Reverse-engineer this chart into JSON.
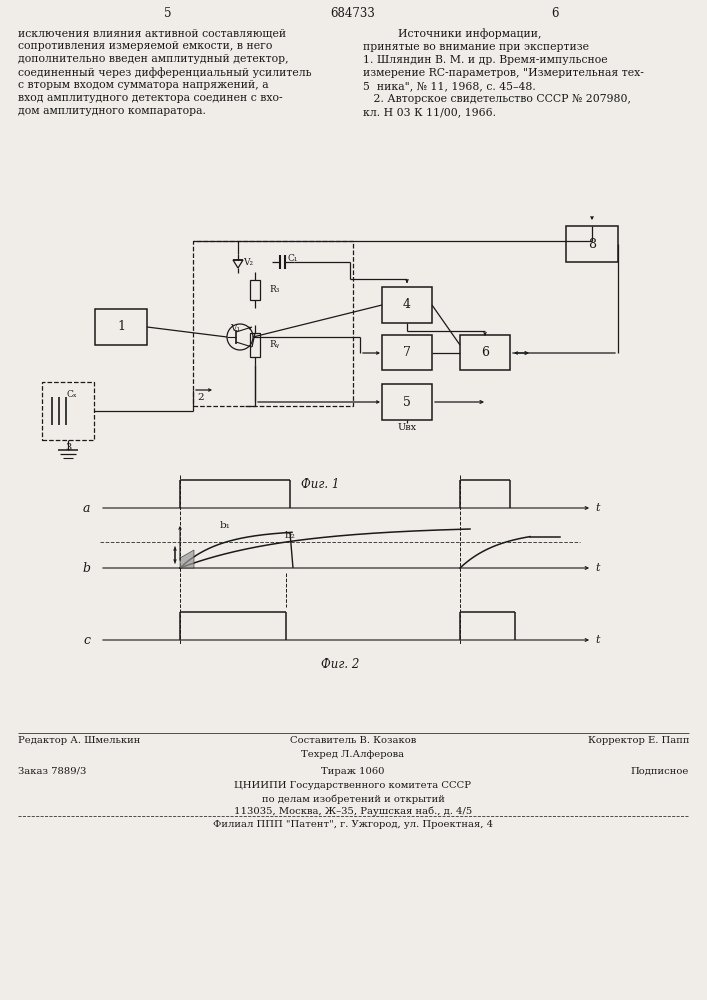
{
  "page_width": 7.07,
  "page_height": 10.0,
  "bg_color": "#f0ede8",
  "text_color": "#1a1a1a",
  "header": {
    "page_num_left": "5",
    "patent_num": "684733",
    "page_num_right": "6"
  },
  "left_text": [
    "исключения влияния активной составляющей",
    "сопротивления измеряемой емкости, в него",
    "дополнительно введен амплитудный детектор,",
    "соединенный через дифференциальный усилитель",
    "с вторым входом сумматора напряжений, а",
    "вход амплитудного детектора соединен с вхо-",
    "дом амплитудного компаратора."
  ],
  "right_text_title": "Источники информации,",
  "right_text": [
    "принятые во внимание при экспертизе",
    "1. Шляндин В. М. и др. Время-импульсное",
    "измерение RC-параметров, \"Измерительная тех-",
    "5  ника\", № 11, 1968, с. 45–48.",
    "   2. Авторское свидетельство СССР № 207980,",
    "кл. Н 03 К 11/00, 1966."
  ],
  "fig1_caption": "Фuг. 1",
  "fig2_caption": "Фuг. 2",
  "bottom_text": {
    "editor": "Редактор А. Шмелькин",
    "composer": "Составитель В. Козаков",
    "corrector": "Корректор Е. Папп",
    "tech": "Техред Л.Алферова",
    "order": "Заказ 7889/3",
    "circulation": "Тираж 1060",
    "subscription": "Подписное",
    "org_line1": "ЦНИИПИ Государственного комитета СССР",
    "org_line2": "по делам изобретений и открытий",
    "org_line3": "113035, Москва, Ж–35, Раушская наб., д. 4/5",
    "branch": "Филиал ППП \"Патент\", г. Ужгород, ул. Проектная, 4"
  }
}
